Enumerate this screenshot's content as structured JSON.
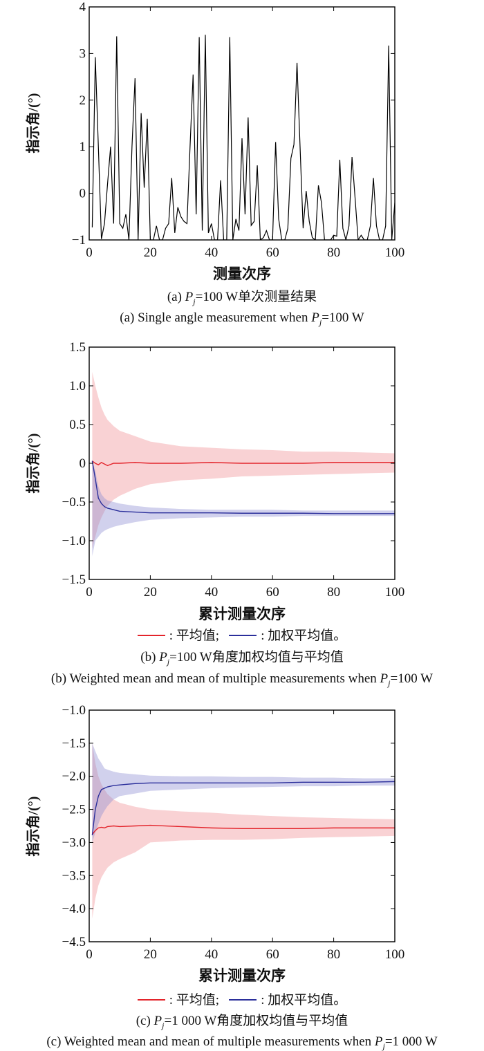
{
  "chart_data": [
    {
      "type": "line",
      "ylabel": "指示角/(°)",
      "xlabel": "测量次序",
      "caption_cn": {
        "prefix": "(a) ",
        "var": "P",
        "sub": "j",
        "suffix": "=100 W单次测量结果"
      },
      "caption_en": {
        "prefix": "(a) Single angle measurement when ",
        "var": "P",
        "sub": "j",
        "suffix": "=100 W"
      },
      "xlim": [
        0,
        100
      ],
      "ylim": [
        -1,
        4
      ],
      "xticks": [
        0,
        20,
        40,
        60,
        80,
        100
      ],
      "xtick_labels": [
        "0",
        "20",
        "40",
        "60",
        "80",
        "100"
      ],
      "yticks": [
        4,
        3,
        2,
        1,
        0,
        -1
      ],
      "ytick_labels": [
        "4",
        "3",
        "2",
        "1",
        "0",
        "−1"
      ],
      "grid": false,
      "series": [
        {
          "name": "单次测量",
          "color": "#000000",
          "x": [
            1,
            2,
            3,
            4,
            5,
            6,
            7,
            8,
            9,
            10,
            11,
            12,
            13,
            14,
            15,
            16,
            17,
            18,
            19,
            20,
            21,
            22,
            23,
            24,
            25,
            26,
            27,
            28,
            29,
            30,
            31,
            32,
            33,
            34,
            35,
            36,
            37,
            38,
            39,
            40,
            41,
            42,
            43,
            44,
            45,
            46,
            47,
            48,
            49,
            50,
            51,
            52,
            53,
            54,
            55,
            56,
            57,
            58,
            59,
            60,
            61,
            62,
            63,
            64,
            65,
            66,
            67,
            68,
            69,
            70,
            71,
            72,
            73,
            74,
            75,
            76,
            77,
            78,
            79,
            80,
            81,
            82,
            83,
            84,
            85,
            86,
            87,
            88,
            89,
            90,
            91,
            92,
            93,
            94,
            95,
            96,
            97,
            98,
            99,
            100
          ],
          "y": [
            -0.73,
            2.92,
            1.0,
            -0.98,
            -0.65,
            0.2,
            1.0,
            -0.65,
            3.37,
            -0.65,
            -0.75,
            -0.45,
            -1,
            1.0,
            2.47,
            -1,
            1.72,
            0.12,
            1.6,
            -1,
            -1,
            -0.7,
            -1,
            -1,
            -0.75,
            -0.65,
            0.33,
            -0.85,
            -0.3,
            -0.5,
            -0.6,
            -0.65,
            1.0,
            2.55,
            -0.45,
            3.35,
            -0.8,
            3.4,
            -0.85,
            -0.65,
            -1,
            -1,
            0.28,
            -1,
            -1,
            3.35,
            -1,
            -0.55,
            -0.8,
            1.18,
            -0.45,
            1.63,
            -0.69,
            -0.6,
            0.6,
            -1,
            -0.95,
            -0.8,
            -1,
            -1,
            1.1,
            -0.55,
            -1,
            -1,
            -0.75,
            0.75,
            1.05,
            2.8,
            1.0,
            -0.75,
            0.05,
            -0.6,
            -0.95,
            -1,
            0.17,
            -0.2,
            -1,
            -1,
            -1,
            -0.9,
            -0.92,
            0.72,
            -0.75,
            -1,
            -0.7,
            0.78,
            -0.1,
            -1,
            -0.9,
            -1,
            -1,
            -0.7,
            0.33,
            -0.7,
            -1,
            -1,
            -0.7,
            3.17,
            -1,
            -0.2
          ]
        }
      ]
    },
    {
      "type": "area",
      "ylabel": "指示角/(°)",
      "xlabel": "累计测量次序",
      "legend": {
        "mean_label": ": 平均值;",
        "weighted_label": ": 加权平均值。"
      },
      "caption_cn": {
        "prefix": "(b) ",
        "var": "P",
        "sub": "j",
        "suffix": "=100 W角度加权均值与平均值"
      },
      "caption_en": {
        "prefix": "(b) Weighted mean and mean of multiple measurements when ",
        "var": "P",
        "sub": "j",
        "suffix": "=100 W"
      },
      "xlim": [
        0,
        100
      ],
      "ylim": [
        -1.5,
        1.5
      ],
      "xticks": [
        0,
        20,
        40,
        60,
        80,
        100
      ],
      "xtick_labels": [
        "0",
        "20",
        "40",
        "60",
        "80",
        "100"
      ],
      "yticks": [
        1.5,
        1.0,
        0.5,
        0,
        -0.5,
        -1.0,
        -1.5
      ],
      "ytick_labels": [
        "1.5",
        "1.0",
        "0.5",
        "0",
        "−0.5",
        "−1.0",
        "−1.5"
      ],
      "grid": false,
      "x": [
        1,
        2,
        3,
        4,
        5,
        6,
        8,
        10,
        15,
        20,
        30,
        40,
        50,
        60,
        70,
        80,
        90,
        100
      ],
      "series": [
        {
          "name": "平均值",
          "color": "#e3242b",
          "band_color": "#f08f93",
          "mean": [
            0.03,
            0.0,
            -0.02,
            0.01,
            -0.01,
            -0.03,
            0,
            0,
            0.01,
            0,
            0,
            0.01,
            0,
            0,
            0,
            0.01,
            0.01,
            0.01
          ],
          "upper": [
            1.18,
            1.0,
            0.85,
            0.72,
            0.63,
            0.56,
            0.48,
            0.42,
            0.35,
            0.28,
            0.22,
            0.2,
            0.18,
            0.17,
            0.15,
            0.15,
            0.14,
            0.13
          ],
          "lower": [
            -1.1,
            -0.95,
            -0.8,
            -0.7,
            -0.62,
            -0.55,
            -0.47,
            -0.42,
            -0.33,
            -0.27,
            -0.22,
            -0.2,
            -0.17,
            -0.16,
            -0.15,
            -0.14,
            -0.13,
            -0.12
          ]
        },
        {
          "name": "加权平均值",
          "color": "#2b2f9b",
          "band_color": "#8c8cd2",
          "mean": [
            0.03,
            -0.2,
            -0.45,
            -0.52,
            -0.56,
            -0.58,
            -0.6,
            -0.62,
            -0.63,
            -0.64,
            -0.64,
            -0.64,
            -0.645,
            -0.645,
            -0.645,
            -0.65,
            -0.65,
            -0.65
          ],
          "upper": [
            0.03,
            -0.1,
            -0.3,
            -0.4,
            -0.45,
            -0.48,
            -0.5,
            -0.52,
            -0.55,
            -0.57,
            -0.59,
            -0.6,
            -0.6,
            -0.6,
            -0.61,
            -0.61,
            -0.61,
            -0.61
          ],
          "lower": [
            -1.2,
            -1.0,
            -0.95,
            -0.9,
            -0.87,
            -0.85,
            -0.82,
            -0.8,
            -0.76,
            -0.73,
            -0.71,
            -0.7,
            -0.69,
            -0.69,
            -0.68,
            -0.68,
            -0.68,
            -0.68
          ]
        }
      ]
    },
    {
      "type": "area",
      "ylabel": "指示角/(°)",
      "xlabel": "累计测量次序",
      "legend": {
        "mean_label": ": 平均值;",
        "weighted_label": ": 加权平均值。"
      },
      "caption_cn": {
        "prefix": "(c) ",
        "var": "P",
        "sub": "j",
        "suffix": "=1 000 W角度加权均值与平均值"
      },
      "caption_en": {
        "prefix": "(c) Weighted mean and mean of multiple measurements when ",
        "var": "P",
        "sub": "j",
        "suffix": "=1 000 W"
      },
      "xlim": [
        0,
        100
      ],
      "ylim": [
        -4.5,
        -1.0
      ],
      "xticks": [
        0,
        20,
        40,
        60,
        80,
        100
      ],
      "xtick_labels": [
        "0",
        "20",
        "40",
        "60",
        "80",
        "100"
      ],
      "yticks": [
        -1.0,
        -1.5,
        -2.0,
        -2.5,
        -3.0,
        -3.5,
        -4.0,
        -4.5
      ],
      "ytick_labels": [
        "−1.0",
        "−1.5",
        "−2.0",
        "−2.5",
        "−3.0",
        "−3.5",
        "−4.0",
        "−4.5"
      ],
      "grid": false,
      "x": [
        1,
        2,
        3,
        4,
        5,
        6,
        8,
        10,
        15,
        20,
        30,
        40,
        50,
        60,
        70,
        80,
        90,
        100
      ],
      "series": [
        {
          "name": "平均值",
          "color": "#e3242b",
          "band_color": "#f08f93",
          "mean": [
            -2.88,
            -2.82,
            -2.78,
            -2.77,
            -2.78,
            -2.76,
            -2.75,
            -2.76,
            -2.75,
            -2.74,
            -2.76,
            -2.78,
            -2.79,
            -2.79,
            -2.79,
            -2.78,
            -2.78,
            -2.78
          ],
          "upper": [
            -1.5,
            -1.8,
            -2.0,
            -2.12,
            -2.2,
            -2.27,
            -2.35,
            -2.4,
            -2.46,
            -2.5,
            -2.53,
            -2.55,
            -2.58,
            -2.6,
            -2.62,
            -2.63,
            -2.64,
            -2.65
          ],
          "lower": [
            -4.15,
            -3.85,
            -3.65,
            -3.53,
            -3.45,
            -3.38,
            -3.3,
            -3.25,
            -3.15,
            -3.0,
            -2.97,
            -2.96,
            -2.96,
            -2.95,
            -2.93,
            -2.92,
            -2.91,
            -2.9
          ]
        },
        {
          "name": "加权平均值",
          "color": "#2b2f9b",
          "band_color": "#8c8cd2",
          "mean": [
            -2.89,
            -2.5,
            -2.3,
            -2.2,
            -2.18,
            -2.16,
            -2.14,
            -2.13,
            -2.11,
            -2.1,
            -2.1,
            -2.1,
            -2.1,
            -2.1,
            -2.09,
            -2.09,
            -2.09,
            -2.08
          ],
          "upper": [
            -1.5,
            -1.62,
            -1.73,
            -1.8,
            -1.88,
            -1.9,
            -1.93,
            -1.95,
            -1.97,
            -1.99,
            -2.0,
            -2.0,
            -2.01,
            -2.01,
            -2.02,
            -2.02,
            -2.03,
            -2.03
          ],
          "lower": [
            -3.0,
            -2.85,
            -2.72,
            -2.6,
            -2.52,
            -2.45,
            -2.35,
            -2.3,
            -2.26,
            -2.22,
            -2.2,
            -2.18,
            -2.17,
            -2.16,
            -2.15,
            -2.15,
            -2.14,
            -2.14
          ]
        }
      ]
    }
  ]
}
